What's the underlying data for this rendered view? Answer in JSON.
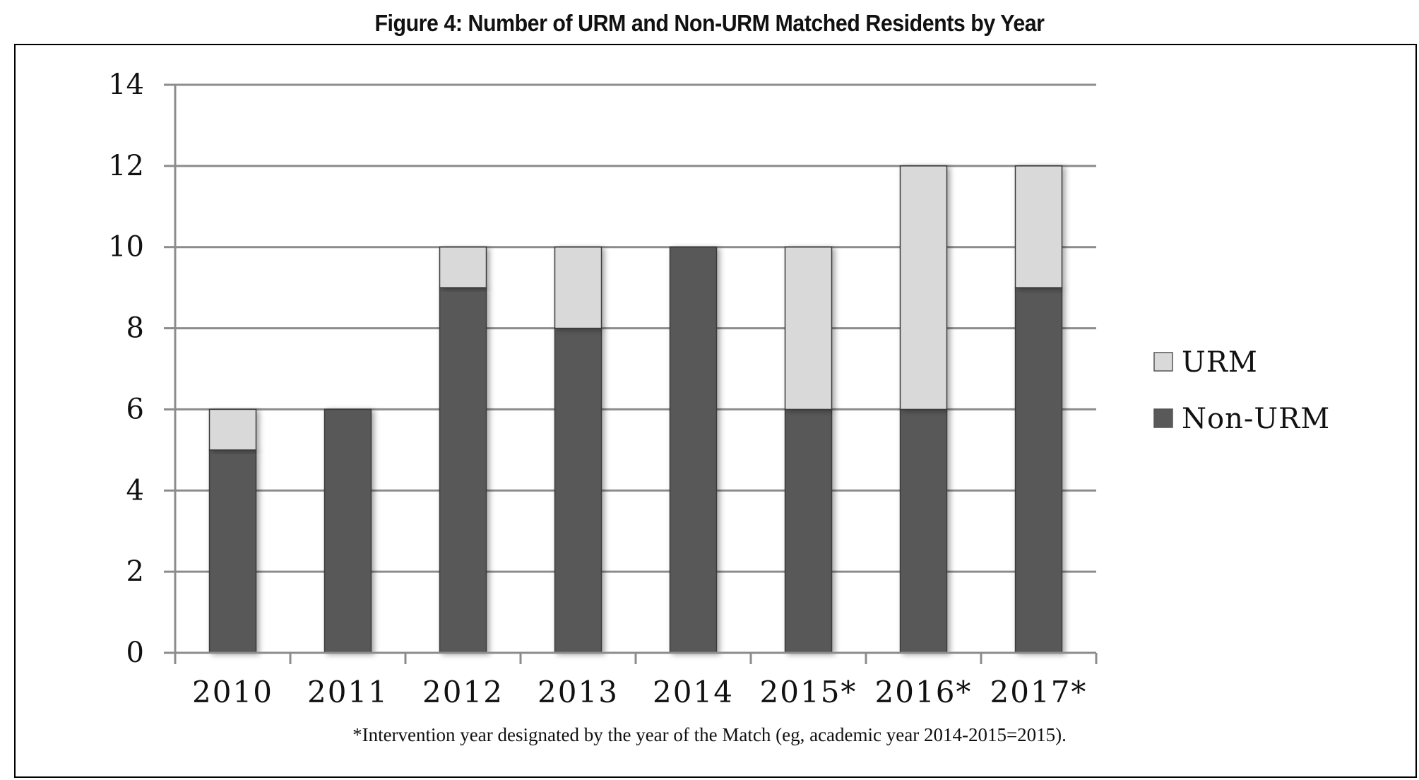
{
  "chart_data": {
    "type": "bar",
    "stacked": true,
    "title": "Figure 4: Number of URM and Non-URM Matched Residents by Year",
    "categories": [
      "2010",
      "2011",
      "2012",
      "2013",
      "2014",
      "2015*",
      "2016*",
      "2017*"
    ],
    "series": [
      {
        "name": "Non-URM",
        "values": [
          5,
          6,
          9,
          8,
          10,
          6,
          6,
          9
        ],
        "color": "#595959"
      },
      {
        "name": "URM",
        "values": [
          1,
          0,
          1,
          2,
          0,
          4,
          6,
          3
        ],
        "color": "#d9d9d9"
      }
    ],
    "yticks": [
      "0",
      "2",
      "4",
      "6",
      "8",
      "10",
      "12",
      "14"
    ],
    "ylim": [
      0,
      14
    ],
    "grid": true,
    "legend_position": "right",
    "footnote": "*Intervention year designated by the year of the Match (eg, academic year 2014-2015=2015)."
  }
}
